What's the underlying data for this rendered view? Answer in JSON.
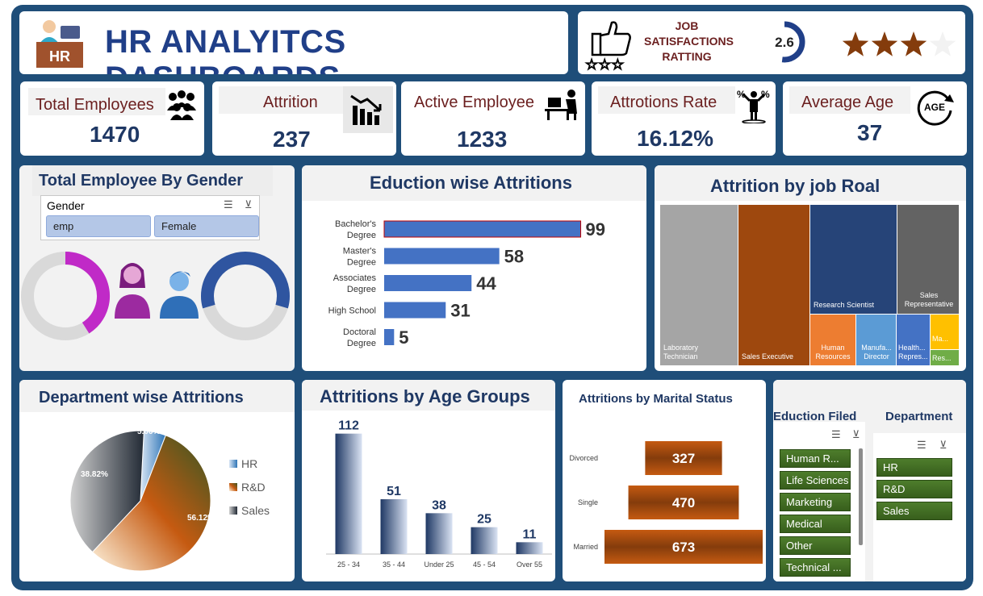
{
  "header": {
    "title": "HR ANALYITCS DASHBOARDS",
    "logo_text": "HR"
  },
  "job_satisfaction": {
    "label_line1": "JOB",
    "label_line2": "SATISFACTIONS",
    "label_line3": "RATTING",
    "score": "2.6",
    "score_fraction": 0.52,
    "stars_filled": 3,
    "stars_total": 4
  },
  "kpis": {
    "total_employees": {
      "label": "Total Employees",
      "value": "1470"
    },
    "attrition": {
      "label": "Attrition",
      "value": "237"
    },
    "active_employee": {
      "label": "Active Employee",
      "value": "1233"
    },
    "attrition_rate": {
      "label": "Attrotions Rate",
      "value": "16.12%"
    },
    "average_age": {
      "label": "Average Age",
      "value": "37",
      "icon_text": "AGE"
    }
  },
  "gender_card": {
    "title": "Total Employee By Gender",
    "slicer_title": "Gender",
    "options": [
      "emp",
      "Female"
    ],
    "female_fraction": 0.41,
    "male_fraction": 0.59,
    "colors": {
      "female": "#c02ac7",
      "male": "#2f55a0",
      "track": "#d9d9d9"
    }
  },
  "education_card": {
    "title": "Eduction wise Attritions",
    "chart_data": {
      "type": "bar",
      "categories": [
        "Bachelor's Degree",
        "Master's Degree",
        "Associates Degree",
        "High School",
        "Doctoral Degree"
      ],
      "values": [
        99,
        58,
        44,
        31,
        5
      ],
      "xlim": [
        0,
        100
      ]
    }
  },
  "jobrole_card": {
    "title": "Attrition by job Roal",
    "chart_data": {
      "type": "treemap",
      "labels": [
        "Laboratory Technician",
        "Sales Executive",
        "Research Scientist",
        "Sales Representative",
        "Human Resources",
        "Manufa... Director",
        "Health... Repres...",
        "Ma...",
        "Res..."
      ]
    }
  },
  "department_card": {
    "title": "Department wise Attritions",
    "chart_data": {
      "type": "pie",
      "categories": [
        "HR",
        "R&D",
        "Sales"
      ],
      "values": [
        5.06,
        56.12,
        38.82
      ],
      "labels": [
        "5.06%",
        "56.12%",
        "38.82%"
      ]
    }
  },
  "age_card": {
    "title": "Attritions by Age Groups",
    "chart_data": {
      "type": "bar",
      "categories": [
        "25 - 34",
        "35 - 44",
        "Under 25",
        "45 - 54",
        "Over 55"
      ],
      "values": [
        112,
        51,
        38,
        25,
        11
      ],
      "ylim": [
        0,
        120
      ]
    }
  },
  "marital_card": {
    "title": "Attritions by Marital Status",
    "chart_data": {
      "type": "bar",
      "categories": [
        "Divorced",
        "Single",
        "Married"
      ],
      "values": [
        327,
        470,
        673
      ]
    }
  },
  "slicers": {
    "education_field": {
      "title": "Eduction Filed",
      "options": [
        "Human R...",
        "Life Sciences",
        "Marketing",
        "Medical",
        "Other",
        "Technical ..."
      ]
    },
    "department": {
      "title": "Department",
      "options": [
        "HR",
        "R&D",
        "Sales"
      ]
    }
  }
}
